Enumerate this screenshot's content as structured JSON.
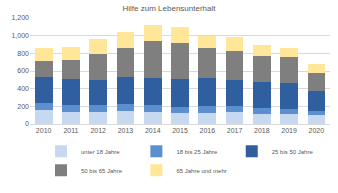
{
  "chart_data": {
    "type": "bar",
    "title": "Hilfe zum Lebensunterhalt",
    "stacked": true,
    "grid": true,
    "legend": "bottom",
    "categories": [
      "2010",
      "2011",
      "2012",
      "2013",
      "2014",
      "2015",
      "2016",
      "2017",
      "2018",
      "2019",
      "2020"
    ],
    "series": [
      {
        "name": "unter 18 Jahre",
        "color": "#c6d9f0",
        "values": [
          155,
          135,
          140,
          150,
          140,
          120,
          130,
          135,
          110,
          115,
          100
        ]
      },
      {
        "name": "18 bis 25 Jahre",
        "color": "#5b8fd0",
        "values": [
          80,
          80,
          75,
          75,
          75,
          75,
          70,
          70,
          70,
          60,
          45
        ]
      },
      {
        "name": "25 bis 50 Jahre",
        "color": "#2f5f9e",
        "values": [
          300,
          295,
          285,
          305,
          305,
          310,
          320,
          295,
          290,
          285,
          225
        ]
      },
      {
        "name": "50 bis 65 Jahre",
        "color": "#7f7f7f",
        "values": [
          175,
          210,
          290,
          330,
          420,
          415,
          340,
          330,
          300,
          300,
          210
        ]
      },
      {
        "name": "65 Jahre und mehr",
        "color": "#ffe699",
        "values": [
          145,
          150,
          170,
          180,
          180,
          180,
          140,
          160,
          130,
          100,
          100
        ]
      }
    ],
    "ylim": [
      0,
      1200
    ],
    "yticks": [
      0,
      200,
      400,
      600,
      800,
      {
        "value": 1000,
        "label": "1,000"
      },
      {
        "value": 1200,
        "label": "1,200"
      }
    ]
  }
}
